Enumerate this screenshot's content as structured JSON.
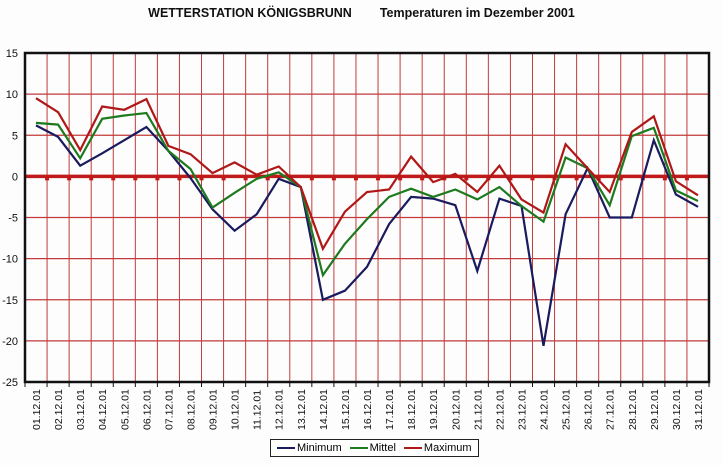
{
  "chart_data": {
    "type": "line",
    "title": "WETTERSTATION KÖNIGSBRUNN",
    "subtitle": "Temperaturen im Dezember 2001",
    "xlabel": "",
    "ylabel": "",
    "ylim": [
      -25,
      15
    ],
    "yticks": [
      "15",
      "10",
      "5",
      "0",
      "-5",
      "-10",
      "-15",
      "-20",
      "-25"
    ],
    "ytick_values": [
      15,
      10,
      5,
      0,
      -5,
      -10,
      -15,
      -20,
      -25
    ],
    "grid": true,
    "legend_position": "bottom",
    "categories": [
      "01.12.01",
      "02.12.01",
      "03.12.01",
      "04.12.01",
      "05.12.01",
      "06.12.01",
      "07.12.01",
      "08.12.01",
      "09.12.01",
      "10.12.01",
      "11.12.01",
      "12.12.01",
      "13.12.01",
      "14.12.01",
      "15.12.01",
      "16.12.01",
      "17.12.01",
      "18.12.01",
      "19.12.01",
      "20.12.01",
      "21.12.01",
      "22.12.01",
      "23.12.01",
      "24.12.01",
      "25.12.01",
      "26.12.01",
      "27.12.01",
      "28.12.01",
      "29.12.01",
      "30.12.01",
      "31.12.01"
    ],
    "series": [
      {
        "name": "Minimum",
        "color": "#1a1a5e",
        "values": [
          6.2,
          4.8,
          1.3,
          2.8,
          4.4,
          6.0,
          3.1,
          -0.2,
          -4.0,
          -6.6,
          -4.6,
          -0.3,
          -1.3,
          -15.0,
          -13.9,
          -11.0,
          -5.8,
          -2.5,
          -2.7,
          -3.5,
          -11.5,
          -2.7,
          -3.6,
          -20.6,
          -4.6,
          1.0,
          -5.0,
          -5.0,
          4.4,
          -2.2,
          -3.7
        ]
      },
      {
        "name": "Mittel",
        "color": "#1e7a1e",
        "values": [
          6.5,
          6.3,
          2.2,
          7.0,
          7.4,
          7.7,
          3.1,
          0.9,
          -3.8,
          -2.0,
          -0.3,
          0.5,
          -1.3,
          -12.0,
          -8.2,
          -5.2,
          -2.5,
          -1.5,
          -2.5,
          -1.6,
          -2.8,
          -1.3,
          -3.6,
          -5.5,
          2.3,
          1.0,
          -3.5,
          4.9,
          5.9,
          -1.7,
          -3.0
        ]
      },
      {
        "name": "Maximum",
        "color": "#b01818",
        "values": [
          9.5,
          7.8,
          3.2,
          8.5,
          8.1,
          9.4,
          3.7,
          2.7,
          0.4,
          1.7,
          0.2,
          1.2,
          -1.3,
          -8.8,
          -4.3,
          -1.9,
          -1.6,
          2.4,
          -0.7,
          0.3,
          -1.9,
          1.3,
          -2.8,
          -4.4,
          3.9,
          1.0,
          -1.9,
          5.4,
          7.3,
          -0.6,
          -2.3
        ]
      }
    ]
  },
  "colors": {
    "grid": "#c23a3a",
    "zero_line": "#c01a1a",
    "axis": "#111111"
  }
}
